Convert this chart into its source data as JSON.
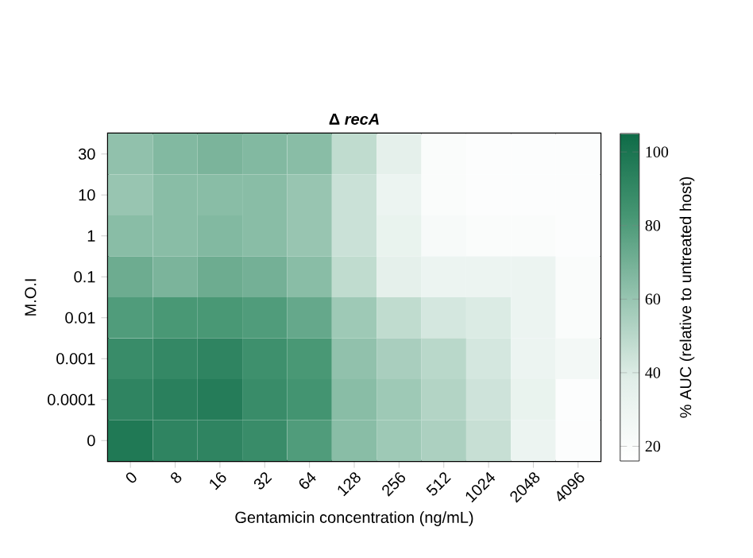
{
  "chart_data": {
    "type": "heatmap",
    "title": "Δ *recA*",
    "xlabel": "Gentamicin concentration (ng/mL)",
    "ylabel": "M.O.I",
    "clabel": "% AUC (relative to untreated host)",
    "categories": [
      "0",
      "8",
      "16",
      "32",
      "64",
      "128",
      "256",
      "512",
      "1024",
      "2048",
      "4096"
    ],
    "y_categories": [
      "30",
      "10",
      "1",
      "0.1",
      "0.01",
      "0.001",
      "0.0001",
      "0"
    ],
    "cells": [
      [
        62,
        66,
        68,
        66,
        64,
        48,
        35,
        20,
        18,
        18,
        18
      ],
      [
        60,
        64,
        64,
        64,
        60,
        45,
        30,
        20,
        18,
        18,
        18
      ],
      [
        64,
        64,
        66,
        64,
        60,
        45,
        32,
        22,
        20,
        20,
        18
      ],
      [
        72,
        68,
        72,
        70,
        64,
        48,
        35,
        30,
        30,
        30,
        20
      ],
      [
        80,
        82,
        82,
        80,
        74,
        58,
        48,
        42,
        40,
        30,
        20
      ],
      [
        88,
        90,
        92,
        86,
        82,
        62,
        55,
        50,
        42,
        30,
        25
      ],
      [
        92,
        94,
        96,
        88,
        84,
        64,
        58,
        52,
        44,
        32,
        18
      ],
      [
        98,
        92,
        92,
        88,
        80,
        64,
        58,
        54,
        46,
        30,
        18
      ]
    ],
    "clim": [
      16,
      105
    ],
    "cticks": [
      20,
      40,
      60,
      80,
      100
    ]
  }
}
